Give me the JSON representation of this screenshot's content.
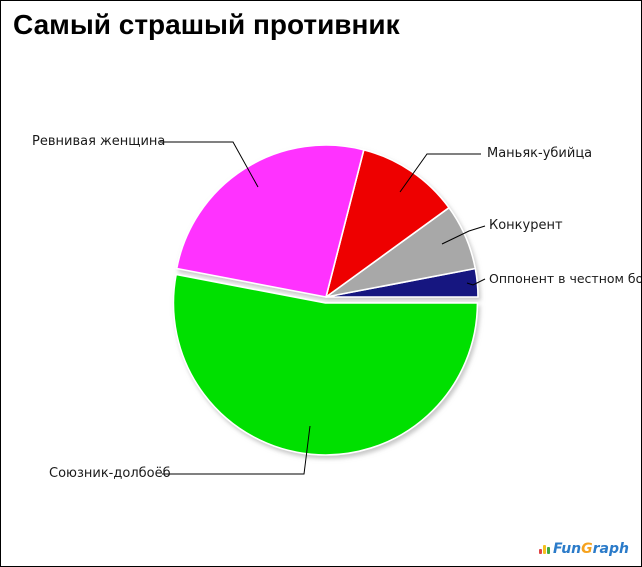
{
  "title": "Самый страшый противник",
  "chart_data": {
    "type": "pie",
    "title": "Самый страшый противник",
    "legend": "none",
    "labels_position": "outside-with-leader-lines",
    "background": "#ffffff",
    "slices": [
      {
        "id": "fair-opponent",
        "label": "Оппонент в честном бою",
        "value": 3,
        "color": "#191980",
        "exploded": false
      },
      {
        "id": "competitor",
        "label": "Конкурент",
        "value": 7,
        "color": "#a8a8a8",
        "exploded": false
      },
      {
        "id": "maniac-killer",
        "label": "Маньяк-убийца",
        "value": 11,
        "color": "#ee0000",
        "exploded": false
      },
      {
        "id": "jealous-woman",
        "label": "Ревнивая женщина",
        "value": 26,
        "color": "#ff33ff",
        "exploded": false
      },
      {
        "id": "ally",
        "label": "Союзник-долбоёб",
        "value": 53,
        "color": "#00e000",
        "exploded": true
      }
    ]
  },
  "watermark": {
    "fun": "Fun",
    "g": "G",
    "raph": "raph"
  }
}
